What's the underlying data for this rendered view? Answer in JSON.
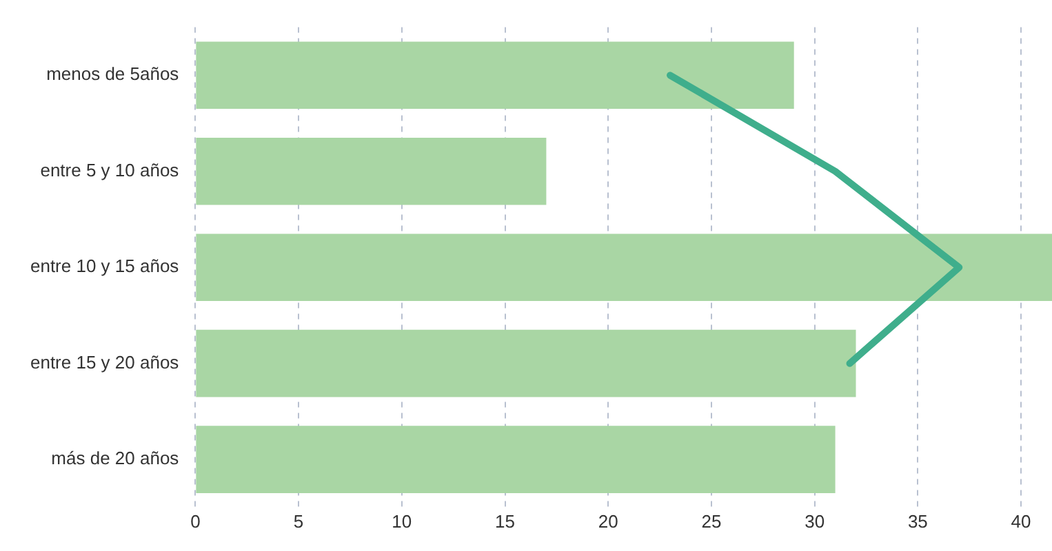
{
  "chart_data": {
    "type": "bar",
    "orientation": "horizontal",
    "categories": [
      "menos de 5años",
      "entre 5 y 10 años",
      "entre 10 y 15 años",
      "entre 15 y 20 años",
      "más de 20 años"
    ],
    "series": [
      {
        "color": "#a9d6a4",
        "values": [
          29,
          17,
          41.5,
          32,
          31
        ]
      },
      {
        "type": "line",
        "color": "#3fae8c",
        "values": [
          23,
          31,
          37,
          31.7,
          null
        ]
      }
    ],
    "xlim": [
      0,
      41.5
    ],
    "xticks": [
      0,
      5,
      10,
      15,
      20,
      25,
      30,
      35,
      40
    ],
    "grid": "x",
    "legend": false,
    "marker": "none",
    "line_style": "solid"
  }
}
